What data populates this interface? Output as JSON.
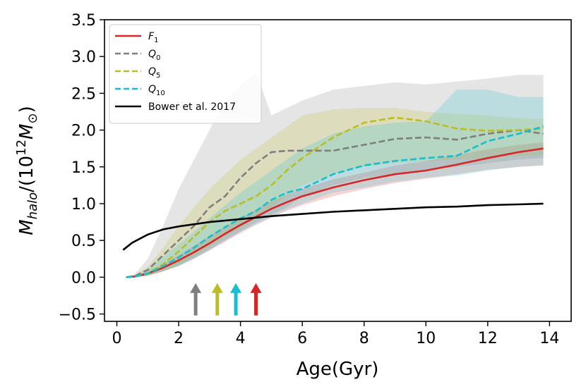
{
  "chart_data": {
    "type": "line",
    "title": "",
    "xlabel": "Age(Gyr)",
    "ylabel": "M_halo/(10^12 M_sun)",
    "xlim": [
      -0.4,
      14.7
    ],
    "ylim": [
      -0.6,
      3.5
    ],
    "xticks": [
      0,
      2,
      4,
      6,
      8,
      10,
      12,
      14
    ],
    "xtick_labels": [
      "0",
      "2",
      "4",
      "6",
      "8",
      "10",
      "12",
      "14"
    ],
    "yticks": [
      -0.5,
      0.0,
      0.5,
      1.0,
      1.5,
      2.0,
      2.5,
      3.0,
      3.5
    ],
    "ytick_labels": [
      "−0.5",
      "0.0",
      "0.5",
      "1.0",
      "1.5",
      "2.0",
      "2.5",
      "3.0",
      "3.5"
    ],
    "grid": false,
    "legend_position": "top-left",
    "series": [
      {
        "name": "F_1",
        "legend_label": "F",
        "legend_sub": "1",
        "color": "#d62728",
        "style": "solid",
        "x": [
          0.3,
          0.6,
          1.0,
          1.5,
          2.0,
          2.5,
          3.0,
          3.5,
          4.0,
          4.5,
          5.0,
          5.5,
          6.0,
          7.0,
          8.0,
          9.0,
          10.0,
          11.0,
          12.0,
          13.0,
          13.8
        ],
        "y": [
          0.0,
          0.01,
          0.05,
          0.13,
          0.23,
          0.34,
          0.46,
          0.59,
          0.71,
          0.82,
          0.93,
          1.02,
          1.1,
          1.22,
          1.32,
          1.4,
          1.45,
          1.53,
          1.62,
          1.7,
          1.75
        ],
        "band_upper": [
          0.0,
          0.02,
          0.08,
          0.18,
          0.3,
          0.43,
          0.56,
          0.69,
          0.8,
          0.92,
          1.03,
          1.12,
          1.2,
          1.33,
          1.42,
          1.52,
          1.58,
          1.66,
          1.74,
          1.8,
          1.83
        ],
        "band_lower": [
          0.0,
          0.0,
          0.02,
          0.08,
          0.16,
          0.26,
          0.36,
          0.48,
          0.6,
          0.71,
          0.81,
          0.9,
          0.98,
          1.1,
          1.2,
          1.28,
          1.34,
          1.4,
          1.46,
          1.5,
          1.52
        ]
      },
      {
        "name": "Q_0",
        "legend_label": "Q",
        "legend_sub": "0",
        "color": "#7f7f7f",
        "style": "dashed",
        "x": [
          0.3,
          0.6,
          1.0,
          1.5,
          2.0,
          2.5,
          3.0,
          3.5,
          4.0,
          4.5,
          5.0,
          5.5,
          6.0,
          7.0,
          8.0,
          9.0,
          10.0,
          11.0,
          12.0,
          13.0,
          13.8
        ],
        "y": [
          0.0,
          0.02,
          0.1,
          0.3,
          0.5,
          0.7,
          0.95,
          1.1,
          1.35,
          1.55,
          1.7,
          1.72,
          1.72,
          1.72,
          1.8,
          1.88,
          1.9,
          1.87,
          1.95,
          2.0,
          1.95
        ],
        "band_upper": [
          0.0,
          0.05,
          0.25,
          0.7,
          1.2,
          1.6,
          2.0,
          2.4,
          2.6,
          2.8,
          2.2,
          2.3,
          2.4,
          2.55,
          2.6,
          2.65,
          2.62,
          2.66,
          2.7,
          2.75,
          2.75
        ],
        "band_lower": [
          0.0,
          0.0,
          0.02,
          0.08,
          0.15,
          0.25,
          0.38,
          0.5,
          0.62,
          0.75,
          0.85,
          0.95,
          1.1,
          1.25,
          1.35,
          1.4,
          1.45,
          1.5,
          1.55,
          1.6,
          1.62
        ]
      },
      {
        "name": "Q_5",
        "legend_label": "Q",
        "legend_sub": "5",
        "color": "#bcbd22",
        "style": "dashed",
        "x": [
          0.3,
          0.6,
          1.0,
          1.5,
          2.0,
          2.5,
          3.0,
          3.5,
          4.0,
          4.5,
          5.0,
          5.5,
          6.0,
          7.0,
          8.0,
          9.0,
          10.0,
          11.0,
          12.0,
          13.0,
          13.8
        ],
        "y": [
          0.0,
          0.01,
          0.05,
          0.18,
          0.35,
          0.55,
          0.75,
          0.9,
          1.0,
          1.1,
          1.25,
          1.45,
          1.62,
          1.9,
          2.1,
          2.17,
          2.12,
          2.02,
          1.99,
          2.0,
          2.02
        ],
        "band_upper": [
          0.0,
          0.03,
          0.15,
          0.4,
          0.7,
          0.95,
          1.2,
          1.4,
          1.6,
          1.75,
          1.9,
          2.05,
          2.2,
          2.28,
          2.3,
          2.3,
          2.25,
          2.22,
          2.2,
          2.16,
          2.15
        ],
        "band_lower": [
          0.0,
          0.0,
          0.02,
          0.08,
          0.16,
          0.28,
          0.42,
          0.55,
          0.68,
          0.8,
          0.95,
          1.1,
          1.25,
          1.4,
          1.5,
          1.55,
          1.58,
          1.6,
          1.62,
          1.65,
          1.66
        ]
      },
      {
        "name": "Q_10",
        "legend_label": "Q",
        "legend_sub": "10",
        "color": "#17becf",
        "style": "dashed",
        "x": [
          0.3,
          0.6,
          1.0,
          1.5,
          2.0,
          2.5,
          3.0,
          3.5,
          4.0,
          4.5,
          5.0,
          5.5,
          6.0,
          7.0,
          8.0,
          9.0,
          10.0,
          11.0,
          12.0,
          13.0,
          13.8
        ],
        "y": [
          0.0,
          0.01,
          0.05,
          0.15,
          0.27,
          0.4,
          0.55,
          0.68,
          0.8,
          0.9,
          1.05,
          1.15,
          1.2,
          1.4,
          1.52,
          1.58,
          1.62,
          1.65,
          1.85,
          1.95,
          2.05
        ],
        "band_upper": [
          0.0,
          0.02,
          0.1,
          0.28,
          0.45,
          0.62,
          0.8,
          0.98,
          1.15,
          1.3,
          1.45,
          1.6,
          1.75,
          1.95,
          2.05,
          2.1,
          2.12,
          2.55,
          2.55,
          2.45,
          2.45
        ],
        "band_lower": [
          0.0,
          0.0,
          0.02,
          0.08,
          0.15,
          0.25,
          0.37,
          0.5,
          0.62,
          0.72,
          0.82,
          0.92,
          1.0,
          1.15,
          1.22,
          1.3,
          1.35,
          1.38,
          1.45,
          1.5,
          1.52
        ]
      },
      {
        "name": "Bower et al. 2017",
        "legend_label": "Bower et al. 2017",
        "legend_sub": "",
        "color": "#000000",
        "style": "solid",
        "x": [
          0.2,
          0.5,
          1.0,
          1.5,
          2.0,
          3.0,
          4.0,
          5.0,
          6.0,
          7.0,
          8.0,
          9.0,
          10.0,
          11.0,
          12.0,
          13.0,
          13.8
        ],
        "y": [
          0.37,
          0.47,
          0.58,
          0.65,
          0.69,
          0.75,
          0.79,
          0.83,
          0.86,
          0.89,
          0.91,
          0.93,
          0.95,
          0.96,
          0.98,
          0.99,
          1.0
        ]
      }
    ],
    "arrows": [
      {
        "x": 2.55,
        "color": "#7f7f7f",
        "y_base": -0.52,
        "y_tip": -0.08
      },
      {
        "x": 3.25,
        "color": "#bcbd22",
        "y_base": -0.52,
        "y_tip": -0.08
      },
      {
        "x": 3.85,
        "color": "#17becf",
        "y_base": -0.52,
        "y_tip": -0.08
      },
      {
        "x": 4.5,
        "color": "#d62728",
        "y_base": -0.52,
        "y_tip": -0.08
      }
    ]
  }
}
